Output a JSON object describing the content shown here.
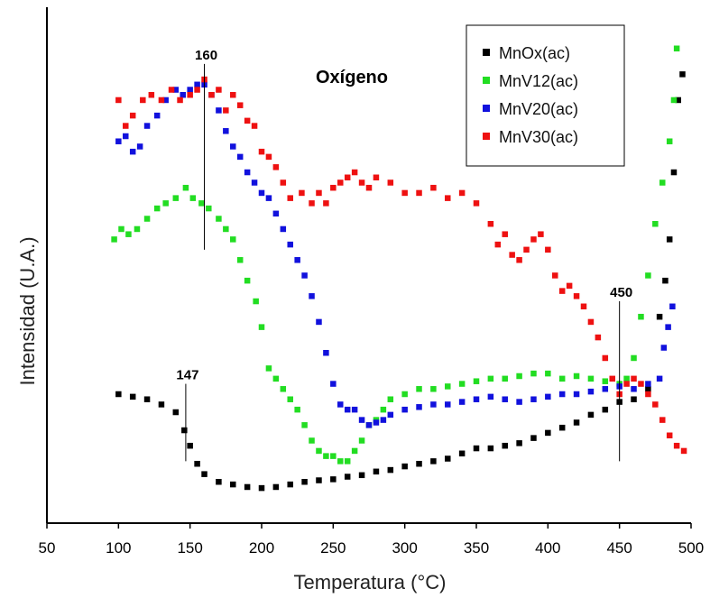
{
  "chart_data": {
    "type": "scatter",
    "title": "Oxígeno",
    "xlabel": "Temperatura (°C)",
    "ylabel": "Intensidad (U.A.)",
    "xlim": [
      50,
      500
    ],
    "xticks": [
      50,
      100,
      150,
      200,
      250,
      300,
      350,
      400,
      450,
      500
    ],
    "ylim": [
      0,
      100
    ],
    "y_tick_labels": false,
    "grid": false,
    "legend_position": "top-right",
    "annotations": [
      {
        "x": 160,
        "label": "160",
        "y_from": 53,
        "y_to": 89
      },
      {
        "x": 147,
        "label": "147",
        "y_from": 12,
        "y_to": 27
      },
      {
        "x": 450,
        "label": "450",
        "y_from": 12,
        "y_to": 43
      }
    ],
    "series": [
      {
        "name": "MnOx(ac)",
        "color": "#000000",
        "x": [
          100,
          110,
          120,
          130,
          140,
          146,
          150,
          155,
          160,
          170,
          180,
          190,
          200,
          210,
          220,
          230,
          240,
          250,
          260,
          270,
          280,
          290,
          300,
          310,
          320,
          330,
          340,
          350,
          360,
          370,
          380,
          390,
          400,
          410,
          420,
          430,
          440,
          450,
          460,
          470,
          478,
          482,
          485,
          488,
          491,
          494
        ],
        "y": [
          25,
          24.5,
          24,
          23,
          21.5,
          18,
          15,
          11.5,
          9.5,
          8,
          7.5,
          7,
          6.8,
          7,
          7.5,
          8,
          8.3,
          8.5,
          9,
          9.3,
          10,
          10.3,
          11,
          11.5,
          12,
          12.5,
          13.5,
          14.5,
          14.5,
          15,
          15.5,
          16.5,
          17.5,
          18.5,
          19.5,
          21,
          22,
          23.5,
          24,
          26,
          40,
          47,
          55,
          68,
          82,
          87
        ]
      },
      {
        "name": "MnV12(ac)",
        "color": "#22dd22",
        "x": [
          97,
          102,
          107,
          113,
          120,
          127,
          133,
          140,
          147,
          152,
          158,
          163,
          170,
          175,
          180,
          185,
          190,
          196,
          200,
          205,
          210,
          215,
          220,
          225,
          230,
          235,
          240,
          245,
          250,
          255,
          260,
          265,
          270,
          275,
          280,
          285,
          290,
          300,
          310,
          320,
          330,
          340,
          350,
          360,
          370,
          380,
          390,
          400,
          410,
          420,
          430,
          440,
          450,
          455,
          460,
          465,
          470,
          475,
          480,
          485,
          488,
          490
        ],
        "y": [
          55,
          57,
          56,
          57,
          59,
          61,
          62,
          63,
          65,
          63,
          62,
          61,
          59,
          57,
          55,
          51,
          47,
          43,
          38,
          30,
          28,
          26,
          24,
          22,
          19,
          16,
          14,
          13,
          13,
          12,
          12,
          14,
          16,
          19,
          20,
          22,
          24,
          25,
          26,
          26,
          26.5,
          27,
          27.5,
          28,
          28,
          28.5,
          29,
          29,
          28,
          28.5,
          28,
          27.5,
          27,
          28,
          32,
          40,
          48,
          58,
          66,
          74,
          82,
          92
        ]
      },
      {
        "name": "MnV20(ac)",
        "color": "#1111dd",
        "x": [
          100,
          105,
          110,
          115,
          120,
          127,
          133,
          140,
          145,
          150,
          155,
          160,
          165,
          170,
          175,
          180,
          185,
          190,
          195,
          200,
          205,
          210,
          215,
          220,
          225,
          230,
          235,
          240,
          245,
          250,
          255,
          260,
          265,
          270,
          275,
          280,
          285,
          290,
          300,
          310,
          320,
          330,
          340,
          350,
          360,
          370,
          380,
          390,
          400,
          410,
          420,
          430,
          440,
          450,
          460,
          470,
          478,
          481,
          484,
          487
        ],
        "y": [
          74,
          75,
          72,
          73,
          77,
          79,
          82,
          84,
          83,
          84,
          85,
          85,
          83,
          80,
          76,
          73,
          71,
          68,
          66,
          64,
          63,
          60,
          57,
          54,
          51,
          48,
          44,
          39,
          33,
          27,
          23,
          22,
          22,
          20,
          19,
          19.5,
          20,
          21,
          22,
          22.5,
          23,
          23,
          23.5,
          24,
          24.5,
          24,
          23.5,
          24,
          24.5,
          25,
          25,
          25.5,
          26,
          26.5,
          26,
          27,
          28,
          34,
          38,
          42
        ]
      },
      {
        "name": "MnV30(ac)",
        "color": "#ee1111",
        "x": [
          100,
          105,
          110,
          117,
          123,
          130,
          137,
          143,
          150,
          155,
          160,
          165,
          170,
          175,
          180,
          185,
          190,
          195,
          200,
          205,
          210,
          215,
          220,
          228,
          235,
          240,
          245,
          250,
          255,
          260,
          265,
          270,
          275,
          280,
          290,
          300,
          310,
          320,
          330,
          340,
          350,
          360,
          365,
          370,
          375,
          380,
          385,
          390,
          395,
          400,
          405,
          410,
          415,
          420,
          425,
          430,
          435,
          440,
          445,
          450,
          455,
          460,
          465,
          470,
          475,
          480,
          485,
          490,
          495
        ],
        "y": [
          82,
          77,
          79,
          82,
          83,
          82,
          84,
          82,
          83,
          84,
          86,
          83,
          84,
          80,
          83,
          81,
          78,
          77,
          72,
          71,
          69,
          66,
          63,
          64,
          62,
          64,
          62,
          65,
          66,
          67,
          68,
          66,
          65,
          67,
          66,
          64,
          64,
          65,
          63,
          64,
          62,
          58,
          54,
          56,
          52,
          51,
          53,
          55,
          56,
          53,
          48,
          45,
          46,
          44,
          42,
          39,
          36,
          32,
          28,
          25,
          27,
          28,
          27,
          25,
          23,
          20,
          17,
          15,
          14
        ]
      }
    ]
  }
}
